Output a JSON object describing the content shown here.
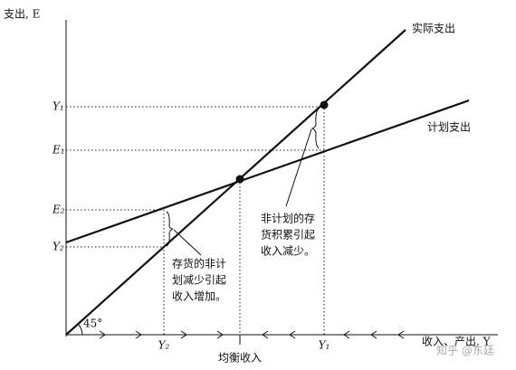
{
  "axes": {
    "y_label": "支出, E",
    "x_label": "收入、产出, Y",
    "angle": "45°"
  },
  "lines": {
    "actual": "实际支出",
    "planned": "计划支出"
  },
  "y_axis_labels": {
    "y1": "Y₁",
    "e1": "E₁",
    "e2": "E₂",
    "y2": "Y₂"
  },
  "x_axis_labels": {
    "y2": "Y₂",
    "equilibrium": "均衡收入",
    "y1": "Y₁"
  },
  "notes": {
    "left": [
      "存货的非计",
      "划减少引起",
      "收入增加。"
    ],
    "right": [
      "非计划的存",
      "货积累引起",
      "收入减少。"
    ]
  },
  "watermark": "知乎 @东廷"
}
